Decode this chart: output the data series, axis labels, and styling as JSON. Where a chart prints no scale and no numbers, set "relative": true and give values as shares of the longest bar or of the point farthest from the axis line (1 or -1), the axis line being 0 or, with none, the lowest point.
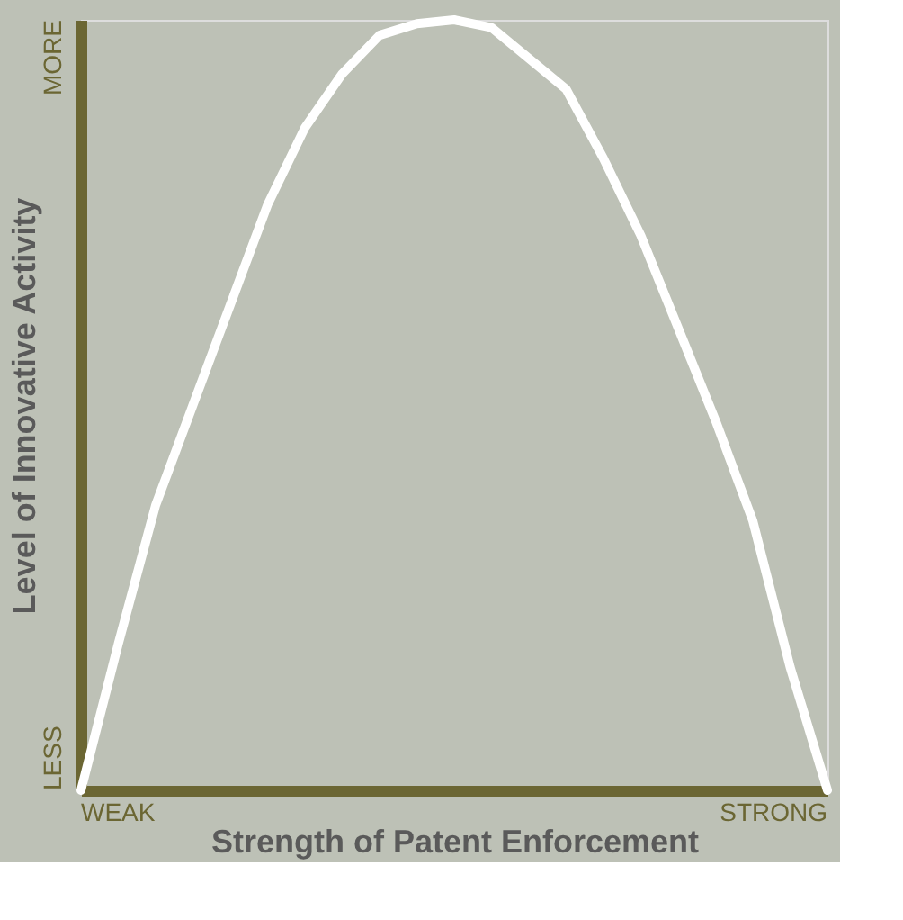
{
  "chart_data": {
    "type": "line",
    "relative": true,
    "xlabel": "Strength of Patent Enforcement",
    "ylabel": "Level of Innovative Activity",
    "categories": [
      null,
      null,
      null,
      null,
      null,
      null,
      null,
      null,
      null,
      null,
      null,
      null,
      null,
      null,
      null,
      null,
      null,
      null,
      null,
      null,
      null
    ],
    "series": [
      {
        "color": "#ffffff",
        "values": [
          0,
          0.19,
          0.37,
          0.5,
          0.63,
          0.76,
          0.86,
          0.93,
          0.98,
          0.995,
          1,
          0.99,
          0.95,
          0.91,
          0.82,
          0.72,
          0.6,
          0.48,
          0.35,
          0.16,
          0
        ]
      }
    ],
    "annotations": [
      "WEAK",
      "STRONG",
      "LESS",
      "MORE"
    ],
    "grid": false,
    "legend": false,
    "marker": "none",
    "line_style": "solid",
    "tick_labels": false
  }
}
